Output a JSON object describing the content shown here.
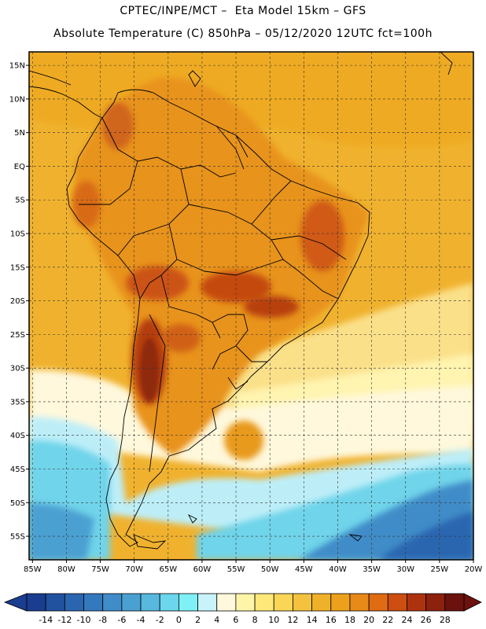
{
  "header": {
    "line1": "CPTEC/INPE/MCT –  Eta Model 15km – GFS",
    "line2": "Absolute Temperature (C) 850hPa – 05/12/2020 12UTC fct=100h"
  },
  "map": {
    "lat_ticks": [
      "15N",
      "10N",
      "5N",
      "EQ",
      "5S",
      "10S",
      "15S",
      "20S",
      "25S",
      "30S",
      "35S",
      "40S",
      "45S",
      "50S",
      "55S"
    ],
    "lon_ticks": [
      "85W",
      "80W",
      "75W",
      "70W",
      "65W",
      "60W",
      "55W",
      "50W",
      "45W",
      "40W",
      "35W",
      "30W",
      "25W",
      "20W"
    ],
    "lat_values": [
      15,
      10,
      5,
      0,
      -5,
      -10,
      -15,
      -20,
      -25,
      -30,
      -35,
      -40,
      -45,
      -50,
      -55
    ],
    "lon_values": [
      -85,
      -80,
      -75,
      -70,
      -65,
      -60,
      -55,
      -50,
      -45,
      -40,
      -35,
      -30,
      -25,
      -20
    ],
    "extent": {
      "lon_min": -85.5,
      "lon_max": -20,
      "lat_min": -58.5,
      "lat_max": 17
    }
  },
  "colorbar": {
    "labels": [
      "-14",
      "-12",
      "-10",
      "-8",
      "-6",
      "-4",
      "-2",
      "0",
      "2",
      "4",
      "6",
      "8",
      "10",
      "12",
      "14",
      "16",
      "18",
      "20",
      "22",
      "24",
      "26",
      "28"
    ],
    "colors": [
      "#1a3d8f",
      "#2152a0",
      "#2a66b0",
      "#3479bd",
      "#3f8cc8",
      "#4ba0d2",
      "#58b8de",
      "#6bd6ec",
      "#7ff0f6",
      "#c8f3fa",
      "#fff8dc",
      "#fff5a8",
      "#ffe87a",
      "#f9d656",
      "#f3c33f",
      "#efb12a",
      "#eca01b",
      "#e78a18",
      "#df6b12",
      "#cc4e10",
      "#ad330f",
      "#8c210e",
      "#6b120e"
    ]
  }
}
